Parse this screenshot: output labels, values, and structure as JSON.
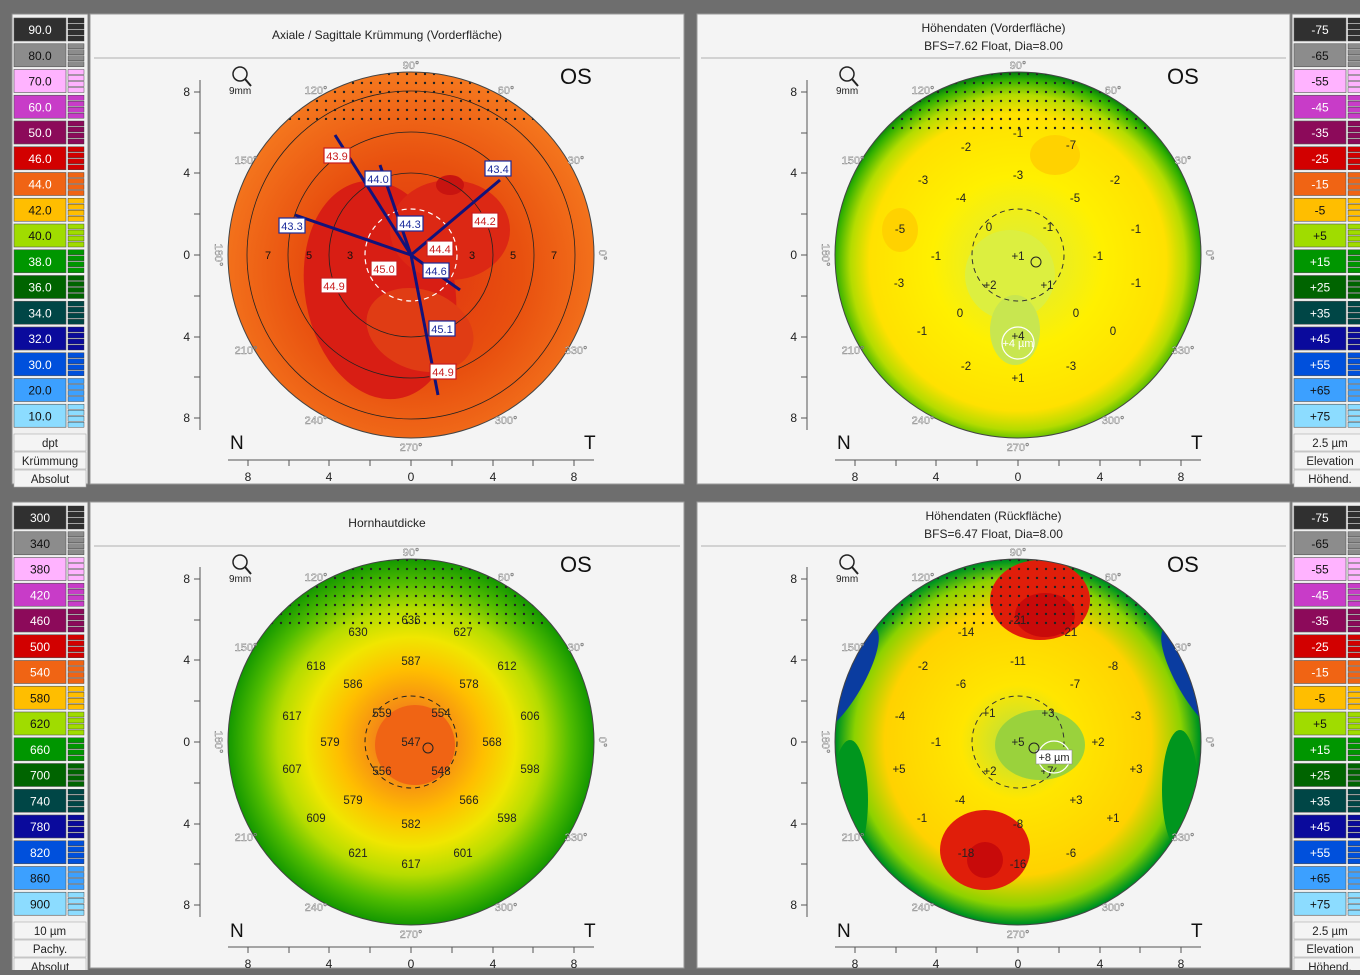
{
  "scales": {
    "curvature": {
      "labels": [
        "90.0",
        "80.0",
        "70.0",
        "60.0",
        "50.0",
        "46.0",
        "44.0",
        "42.0",
        "40.0",
        "38.0",
        "36.0",
        "34.0",
        "32.0",
        "30.0",
        "20.0",
        "10.0"
      ],
      "footer": [
        "dpt",
        "Krümmung",
        "Absolut"
      ]
    },
    "pachy": {
      "labels": [
        "300",
        "340",
        "380",
        "420",
        "460",
        "500",
        "540",
        "580",
        "620",
        "660",
        "700",
        "740",
        "780",
        "820",
        "860",
        "900"
      ],
      "footer": [
        "10 µm",
        "Pachy.",
        "Absolut"
      ]
    },
    "elevation": {
      "labels": [
        "-75",
        "-65",
        "-55",
        "-45",
        "-35",
        "-25",
        "-15",
        "-5",
        "+5",
        "+15",
        "+25",
        "+35",
        "+45",
        "+55",
        "+65",
        "+75"
      ],
      "footer": [
        "2.5 µm",
        "Elevation",
        "Höhend."
      ]
    },
    "colors": [
      "#303030",
      "#8c8c8c",
      "#ffb3ff",
      "#c83cc8",
      "#8c0a5a",
      "#d20000",
      "#f06414",
      "#ffbe00",
      "#a0dc00",
      "#009600",
      "#006400",
      "#004646",
      "#0a0a9c",
      "#0050dc",
      "#3ca0ff",
      "#8cdcff"
    ],
    "colors_rev": [
      "#303030",
      "#8c8c8c",
      "#ffb3ff",
      "#c83cc8",
      "#8c0a5a",
      "#d20000",
      "#f06414",
      "#ffbe00",
      "#a0dc00",
      "#009600",
      "#006400",
      "#004646",
      "#0a0a9c",
      "#0050dc",
      "#3ca0ff",
      "#8cdcff"
    ]
  },
  "common": {
    "eye": "OS",
    "nasal": "N",
    "temporal": "T",
    "zoom": "9mm",
    "axis_ticks": [
      "8",
      "4",
      "0",
      "4",
      "8"
    ],
    "angles": {
      "a90": "90°",
      "a60": "60°",
      "a30": "30°",
      "a0": "0°",
      "a330": "330°",
      "a300": "300°",
      "a270": "270°",
      "a240": "240°",
      "a210": "210°",
      "a180": "180°",
      "a150": "150°",
      "a120": "120°"
    }
  },
  "panels": {
    "axial": {
      "title": "Axiale / Sagittale Krümmung (Vorderfläche)",
      "subtitle": "",
      "rings": [
        "7",
        "5",
        "3",
        "3",
        "5",
        "7"
      ],
      "values": [
        "43.9",
        "43.4",
        "44.0",
        "44.3",
        "44.2",
        "43.3",
        "44.4",
        "45.0",
        "44.6",
        "44.9",
        "45.1",
        "44.9"
      ]
    },
    "front": {
      "title": "Höhendaten (Vorderfläche)",
      "subtitle": "BFS=7.62 Float, Dia=8.00",
      "marker": "+4 µm",
      "values": [
        "-1",
        "-7",
        "-2",
        "-3",
        "-3",
        "-4",
        "-5",
        "-2",
        "-5",
        "0",
        "-1",
        "-1",
        "-1",
        "-1",
        "+1",
        "-3",
        "+2",
        "+1",
        "-1",
        "0",
        "0",
        "-1",
        "0",
        "+4",
        "-2",
        "-3",
        "+1"
      ]
    },
    "pachy": {
      "title": "Hornhautdicke",
      "subtitle": "",
      "values": [
        "636",
        "630",
        "627",
        "618",
        "587",
        "612",
        "586",
        "578",
        "617",
        "559",
        "554",
        "606",
        "579",
        "547",
        "568",
        "607",
        "556",
        "548",
        "598",
        "579",
        "566",
        "609",
        "598",
        "582",
        "621",
        "601",
        "617"
      ]
    },
    "back": {
      "title": "Höhendaten (Rückfläche)",
      "subtitle": "BFS=6.47 Float, Dia=8.00",
      "marker": "+8 µm",
      "values": [
        "-21",
        "-21",
        "-14",
        "-11",
        "-2",
        "-8",
        "-6",
        "-7",
        "-4",
        "+1",
        "+3",
        "-3",
        "-1",
        "+5",
        "+2",
        "+5",
        "+2",
        "+7",
        "+3",
        "-4",
        "+3",
        "-1",
        "-8",
        "+1",
        "-6",
        "-18",
        "-16"
      ]
    }
  }
}
